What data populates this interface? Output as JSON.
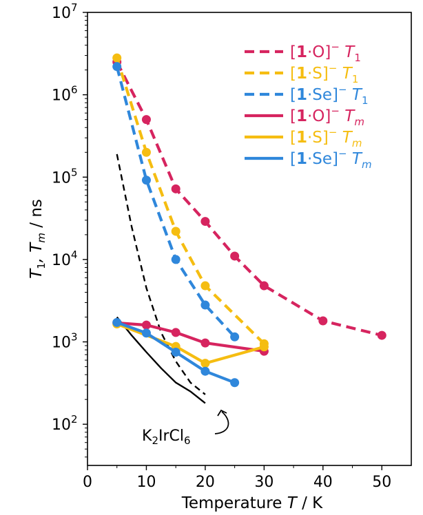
{
  "chart_data": {
    "type": "line",
    "title": "",
    "xlabel": {
      "text": "Temperature",
      "symbol": "T",
      "unit": "K",
      "sep": "/"
    },
    "ylabel": {
      "pre": "T",
      "sub1": "1",
      "mid": ", T",
      "sub2": "m",
      "post": " / ns"
    },
    "xlim": [
      0,
      55
    ],
    "ylim_log10": [
      1.5,
      7
    ],
    "y_scale": "log",
    "xticks": [
      0,
      10,
      20,
      30,
      40,
      50
    ],
    "xtick_labels": [
      "0",
      "10",
      "20",
      "30",
      "40",
      "50"
    ],
    "yticks_exp": [
      2,
      3,
      4,
      5,
      6,
      7
    ],
    "ytick_base": "10",
    "ytick_exps": [
      "2",
      "3",
      "4",
      "5",
      "6",
      "7"
    ],
    "colors": {
      "O": "#d6245f",
      "S": "#f5bd11",
      "Se": "#2f87db",
      "ref": "#000000"
    },
    "series": [
      {
        "name": "[1·O]⁻ T1",
        "compound": "O",
        "kind": "T1",
        "dash": true,
        "x": [
          5,
          10,
          15,
          20,
          25,
          30,
          40,
          50
        ],
        "y": [
          2500000,
          500000,
          72000,
          29000,
          11000,
          4800,
          1800,
          1200
        ]
      },
      {
        "name": "[1·S]⁻ T1",
        "compound": "S",
        "kind": "T1",
        "dash": true,
        "x": [
          5,
          10,
          15,
          20,
          30
        ],
        "y": [
          2800000,
          200000,
          22000,
          4800,
          950
        ]
      },
      {
        "name": "[1·Se]⁻ T1",
        "compound": "Se",
        "kind": "T1",
        "dash": true,
        "x": [
          5,
          10,
          15,
          20,
          25
        ],
        "y": [
          2200000,
          92000,
          10000,
          2800,
          1150
        ]
      },
      {
        "name": "[1·O]⁻ Tm",
        "compound": "O",
        "kind": "Tm",
        "dash": false,
        "x": [
          5,
          10,
          15,
          20,
          30
        ],
        "y": [
          1700,
          1600,
          1300,
          970,
          770
        ]
      },
      {
        "name": "[1·S]⁻ Tm",
        "compound": "S",
        "kind": "Tm",
        "dash": false,
        "x": [
          5,
          15,
          20,
          30
        ],
        "y": [
          1650,
          880,
          550,
          870
        ]
      },
      {
        "name": "[1·Se]⁻ Tm",
        "compound": "Se",
        "kind": "Tm",
        "dash": false,
        "x": [
          5,
          10,
          15,
          20,
          25
        ],
        "y": [
          1720,
          1280,
          750,
          440,
          320
        ]
      }
    ],
    "reference": [
      {
        "name": "K2IrCl6 T1",
        "dash": true,
        "x": [
          5,
          7.5,
          10,
          12.5,
          15,
          17.5,
          20
        ],
        "y": [
          190000,
          25000,
          4500,
          1300,
          580,
          320,
          230
        ]
      },
      {
        "name": "K2IrCl6 Tm",
        "dash": false,
        "x": [
          5,
          7.5,
          10,
          12.5,
          15,
          17.5,
          20
        ],
        "y": [
          2000,
          1200,
          750,
          480,
          320,
          250,
          180
        ]
      }
    ],
    "legend": {
      "position": "top-right",
      "entries": [
        {
          "compound": "O",
          "dash": true,
          "label": "O",
          "kind": "1"
        },
        {
          "compound": "S",
          "dash": true,
          "label": "S",
          "kind": "1"
        },
        {
          "compound": "Se",
          "dash": true,
          "label": "Se",
          "kind": "1"
        },
        {
          "compound": "O",
          "dash": false,
          "label": "O",
          "kind": "m"
        },
        {
          "compound": "S",
          "dash": false,
          "label": "S",
          "kind": "m"
        },
        {
          "compound": "Se",
          "dash": false,
          "label": "Se",
          "kind": "m"
        }
      ],
      "bold_index": "1",
      "dot": "·",
      "charge": "−",
      "symbol": "T"
    },
    "annotation": {
      "base": "K",
      "sub1": "2",
      "mid": "IrCl",
      "sub2": "6"
    }
  }
}
